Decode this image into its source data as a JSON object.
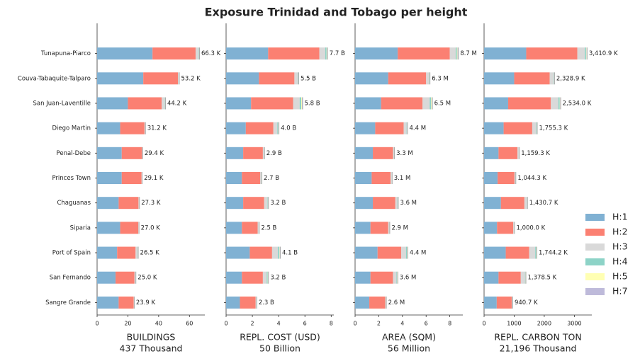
{
  "title": "Exposure Trinidad and Tobago per height",
  "chart_data": [
    {
      "type": "bar",
      "horizontal": true,
      "xlabel": [
        "BUILDINGS",
        "437 Thousand"
      ],
      "categories": [
        "Tunapuna-Piarco",
        "Couva-Tabaquite-Talparo",
        "San Juan-Laventille",
        "Diego Martin",
        "Penal-Debe",
        "Princes Town",
        "Chaguanas",
        "Siparia",
        "Port of Spain",
        "San Fernando",
        "Sangre Grande"
      ],
      "xlim": [
        0,
        70
      ],
      "xticks": [
        0,
        20,
        40,
        60
      ],
      "series": [
        {
          "name": "H:1",
          "color": "#80b1d3",
          "values": [
            36,
            30,
            20,
            15,
            16,
            16,
            14,
            15,
            13,
            12,
            14
          ]
        },
        {
          "name": "H:2",
          "color": "#fb8072",
          "values": [
            28,
            22.5,
            22,
            15.8,
            13.2,
            12.9,
            12.9,
            11.8,
            12,
            12.3,
            9.8
          ]
        },
        {
          "name": "H:3",
          "color": "#d9d9d9",
          "values": [
            1.8,
            0.5,
            1.8,
            0.3,
            0.15,
            0.15,
            0.3,
            0.15,
            1.2,
            0.6,
            0.07
          ]
        },
        {
          "name": "H:4",
          "color": "#8dd3c7",
          "values": [
            0.3,
            0.1,
            0.2,
            0.05,
            0.03,
            0.03,
            0.05,
            0.03,
            0.2,
            0.06,
            0.02
          ]
        },
        {
          "name": "H:5",
          "color": "#ffffb3",
          "values": [
            0.1,
            0.05,
            0.1,
            0.03,
            0.01,
            0.01,
            0.03,
            0.01,
            0.05,
            0.02,
            0.005
          ]
        },
        {
          "name": "H:7",
          "color": "#bebada",
          "values": [
            0.1,
            0.05,
            0.1,
            0.02,
            0.01,
            0.01,
            0.02,
            0.01,
            0.05,
            0.02,
            0.005
          ]
        }
      ],
      "total_labels": [
        "66.3 K",
        "53.2 K",
        "44.2 K",
        "31.2 K",
        "29.4 K",
        "29.1 K",
        "27.3 K",
        "27.0 K",
        "26.5 K",
        "25.0 K",
        "23.9 K"
      ]
    },
    {
      "type": "bar",
      "horizontal": true,
      "xlabel": [
        "REPL. COST (USD)",
        "50 Billion"
      ],
      "xlim": [
        0,
        8.2
      ],
      "xticks": [
        0,
        2,
        4,
        6,
        8
      ],
      "series": [
        {
          "values": [
            3.2,
            2.5,
            1.9,
            1.5,
            1.3,
            1.2,
            1.3,
            1.2,
            1.8,
            1.2,
            1.05
          ]
        },
        {
          "values": [
            3.9,
            2.7,
            3.2,
            2.1,
            1.5,
            1.4,
            1.6,
            1.2,
            1.7,
            1.6,
            1.2
          ]
        },
        {
          "values": [
            0.45,
            0.25,
            0.5,
            0.3,
            0.08,
            0.08,
            0.25,
            0.08,
            0.45,
            0.3,
            0.04
          ]
        },
        {
          "values": [
            0.1,
            0.03,
            0.12,
            0.06,
            0.01,
            0.01,
            0.03,
            0.01,
            0.1,
            0.07,
            0.01
          ]
        },
        {
          "values": [
            0.03,
            0.01,
            0.05,
            0.02,
            0.005,
            0.005,
            0.01,
            0.005,
            0.03,
            0.02,
            0.005
          ]
        },
        {
          "values": [
            0.02,
            0.01,
            0.03,
            0.02,
            0.005,
            0.005,
            0.01,
            0.005,
            0.02,
            0.01,
            0.005
          ]
        }
      ],
      "total_labels": [
        "7.7 B",
        "5.5 B",
        "5.8 B",
        "4.0 B",
        "2.9 B",
        "2.7 B",
        "3.2 B",
        "2.5 B",
        "4.1 B",
        "3.2 B",
        "2.3 B"
      ]
    },
    {
      "type": "bar",
      "horizontal": true,
      "xlabel": [
        "AREA (SQM)",
        "56 Million"
      ],
      "xlim": [
        0,
        9.1
      ],
      "xticks": [
        0,
        2,
        4,
        6,
        8
      ],
      "series": [
        {
          "values": [
            3.6,
            2.8,
            2.2,
            1.7,
            1.5,
            1.4,
            1.5,
            1.3,
            1.9,
            1.3,
            1.2
          ]
        },
        {
          "values": [
            4.4,
            3.2,
            3.5,
            2.4,
            1.7,
            1.6,
            1.9,
            1.5,
            2.0,
            1.9,
            1.35
          ]
        },
        {
          "values": [
            0.5,
            0.25,
            0.6,
            0.25,
            0.08,
            0.08,
            0.17,
            0.08,
            0.4,
            0.3,
            0.04
          ]
        },
        {
          "values": [
            0.1,
            0.03,
            0.12,
            0.03,
            0.01,
            0.01,
            0.03,
            0.01,
            0.08,
            0.05,
            0.01
          ]
        },
        {
          "values": [
            0.05,
            0.01,
            0.05,
            0.01,
            0.005,
            0.005,
            0.01,
            0.005,
            0.02,
            0.02,
            0.005
          ]
        },
        {
          "values": [
            0.05,
            0.01,
            0.03,
            0.01,
            0.005,
            0.005,
            0.01,
            0.005,
            0.02,
            0.01,
            0.005
          ]
        }
      ],
      "total_labels": [
        "8.7 M",
        "6.3 M",
        "6.5 M",
        "4.4 M",
        "3.3 M",
        "3.1 M",
        "3.6 M",
        "2.9 M",
        "4.4 M",
        "3.6 M",
        "2.6 M"
      ]
    },
    {
      "type": "bar",
      "horizontal": true,
      "xlabel": [
        "REPL. CARBON TON",
        "21,196 Thousand"
      ],
      "xlim": [
        0,
        3580
      ],
      "xticks": [
        0,
        1000,
        2000,
        3000
      ],
      "series": [
        {
          "values": [
            1400,
            1000,
            800,
            650,
            480,
            450,
            560,
            430,
            720,
            480,
            420
          ]
        },
        {
          "values": [
            1700,
            1180,
            1420,
            950,
            630,
            560,
            780,
            540,
            780,
            740,
            500
          ]
        },
        {
          "values": [
            250,
            130,
            250,
            130,
            42,
            30,
            80,
            27,
            200,
            140,
            18
          ]
        },
        {
          "values": [
            40,
            12,
            45,
            18,
            5,
            3,
            8,
            2,
            30,
            13,
            2
          ]
        },
        {
          "values": [
            12,
            4,
            12,
            5,
            1.5,
            1,
            2,
            0.7,
            10,
            4,
            0.5
          ]
        },
        {
          "values": [
            8.9,
            2.9,
            7,
            2.3,
            0.8,
            0.3,
            0.7,
            0.3,
            4.2,
            1.5,
            0.2
          ]
        }
      ],
      "total_labels": [
        "3,410.9 K",
        "2,328.9 K",
        "2,534.0 K",
        "1,755.3 K",
        "1,159.3 K",
        "1,044.3 K",
        "1,430.7 K",
        "1,000.0 K",
        "1,744.2 K",
        "1,378.5 K",
        "940.7 K"
      ]
    }
  ]
}
